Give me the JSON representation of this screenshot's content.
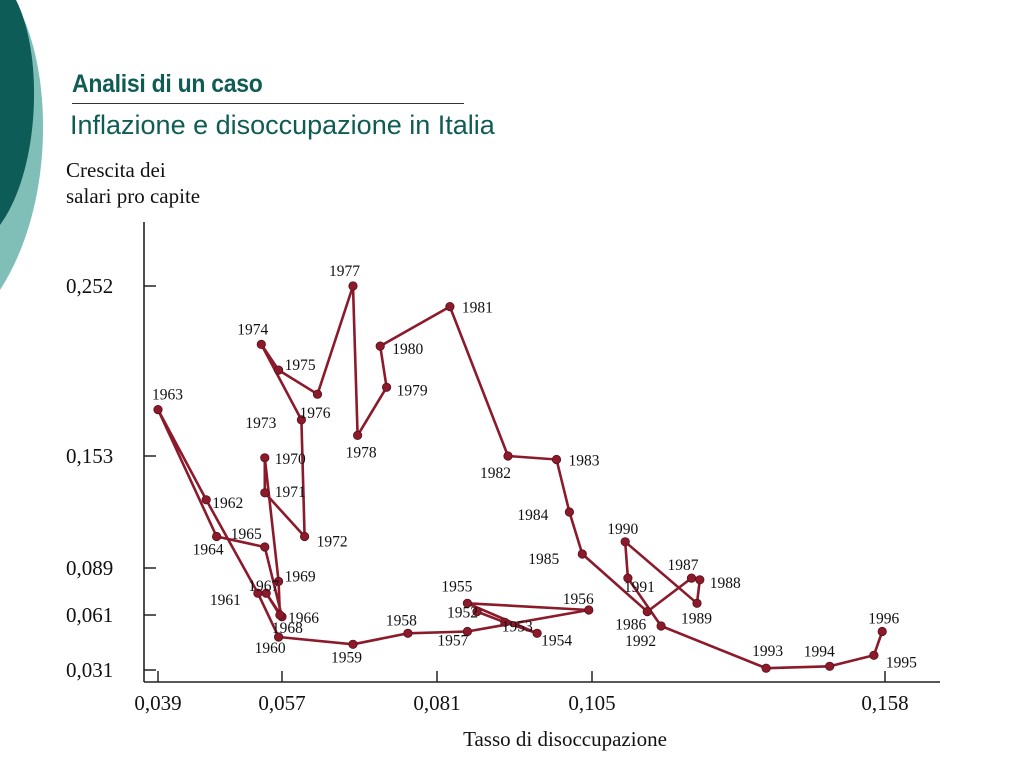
{
  "slide": {
    "title": "Analisi di un caso",
    "subtitle": "Inflazione e disoccupazione in Italia"
  },
  "colors": {
    "title": "#0f5c55",
    "deco_dark": "#0d5c57",
    "deco_light": "#7fbfb8",
    "series": "#8b1a2b",
    "axis": "#222222"
  },
  "chart_data": {
    "type": "line",
    "title": "",
    "ylabel_lines": [
      "Crescita dei",
      "salari pro capite"
    ],
    "xlabel": "Tasso di disoccupazione",
    "x_ticks": [
      "0,039",
      "0,057",
      "0,081",
      "0,105",
      "0,158"
    ],
    "y_ticks": [
      "0,031",
      "0,061",
      "0,089",
      "0,153",
      "0,252"
    ],
    "grid": false,
    "legend": "none",
    "series": [
      {
        "points": [
          {
            "label": "1952",
            "x": 0.0872,
            "y": 0.063
          },
          {
            "label": "1953",
            "x": 0.0915,
            "y": 0.057
          },
          {
            "label": "1954",
            "x": 0.0965,
            "y": 0.051
          },
          {
            "label": "1955",
            "x": 0.0857,
            "y": 0.068
          },
          {
            "label": "1956",
            "x": 0.1045,
            "y": 0.064
          },
          {
            "label": "1957",
            "x": 0.0857,
            "y": 0.052
          },
          {
            "label": "1958",
            "x": 0.0765,
            "y": 0.051
          },
          {
            "label": "1959",
            "x": 0.068,
            "y": 0.045
          },
          {
            "label": "1960",
            "x": 0.0565,
            "y": 0.049
          },
          {
            "label": "1961",
            "x": 0.0535,
            "y": 0.074
          },
          {
            "label": "1962",
            "x": 0.046,
            "y": 0.128
          },
          {
            "label": "1963",
            "x": 0.039,
            "y": 0.18
          },
          {
            "label": "1964",
            "x": 0.0475,
            "y": 0.107
          },
          {
            "label": "1965",
            "x": 0.0545,
            "y": 0.101
          },
          {
            "label": "1966",
            "x": 0.057,
            "y": 0.06
          },
          {
            "label": "1967",
            "x": 0.0547,
            "y": 0.074
          },
          {
            "label": "1968",
            "x": 0.0567,
            "y": 0.061
          },
          {
            "label": "1969",
            "x": 0.0565,
            "y": 0.081
          },
          {
            "label": "1970",
            "x": 0.0545,
            "y": 0.152
          },
          {
            "label": "1971",
            "x": 0.0545,
            "y": 0.132
          },
          {
            "label": "1972",
            "x": 0.0605,
            "y": 0.107
          },
          {
            "label": "1973",
            "x": 0.06,
            "y": 0.174
          },
          {
            "label": "1974",
            "x": 0.054,
            "y": 0.218
          },
          {
            "label": "1975",
            "x": 0.0565,
            "y": 0.203
          },
          {
            "label": "1976",
            "x": 0.0625,
            "y": 0.189
          },
          {
            "label": "1977",
            "x": 0.068,
            "y": 0.252
          },
          {
            "label": "1978",
            "x": 0.0687,
            "y": 0.165
          },
          {
            "label": "1979",
            "x": 0.0732,
            "y": 0.193
          },
          {
            "label": "1980",
            "x": 0.0722,
            "y": 0.217
          },
          {
            "label": "1981",
            "x": 0.083,
            "y": 0.24
          },
          {
            "label": "1982",
            "x": 0.092,
            "y": 0.153
          },
          {
            "label": "1983",
            "x": 0.0995,
            "y": 0.151
          },
          {
            "label": "1984",
            "x": 0.1015,
            "y": 0.121
          },
          {
            "label": "1985",
            "x": 0.1035,
            "y": 0.097
          },
          {
            "label": "1986",
            "x": 0.115,
            "y": 0.063
          },
          {
            "label": "1987",
            "x": 0.123,
            "y": 0.083
          },
          {
            "label": "1988",
            "x": 0.1245,
            "y": 0.082
          },
          {
            "label": "1989",
            "x": 0.124,
            "y": 0.068
          },
          {
            "label": "1990",
            "x": 0.111,
            "y": 0.104
          },
          {
            "label": "1991",
            "x": 0.1115,
            "y": 0.083
          },
          {
            "label": "1992",
            "x": 0.1175,
            "y": 0.055
          },
          {
            "label": "1993",
            "x": 0.1365,
            "y": 0.032
          },
          {
            "label": "1994",
            "x": 0.148,
            "y": 0.033
          },
          {
            "label": "1995",
            "x": 0.156,
            "y": 0.039
          },
          {
            "label": "1996",
            "x": 0.1575,
            "y": 0.052
          }
        ]
      }
    ]
  }
}
